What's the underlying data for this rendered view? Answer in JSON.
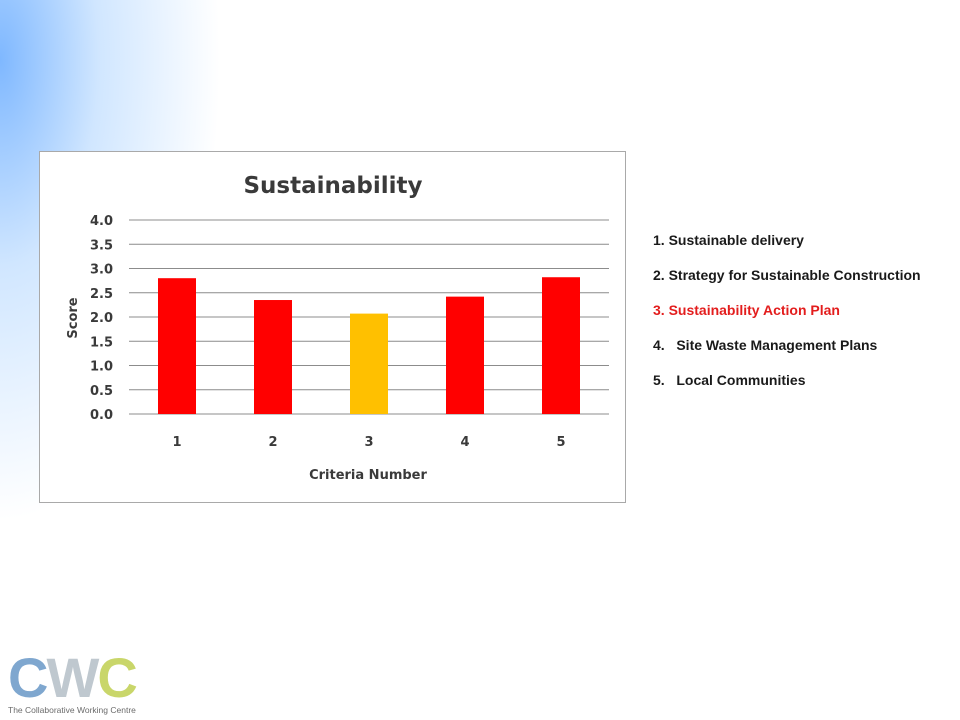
{
  "chart_data": {
    "type": "bar",
    "title": "Sustainability",
    "xlabel": "Criteria Number",
    "ylabel": "Score",
    "categories": [
      "1",
      "2",
      "3",
      "4",
      "5"
    ],
    "values": [
      2.8,
      2.35,
      2.07,
      2.42,
      2.82
    ],
    "bar_colors": [
      "#ff0000",
      "#ff0000",
      "#ffc000",
      "#ff0000",
      "#ff0000"
    ],
    "ylim": [
      0,
      4
    ],
    "yticks": [
      "0.0",
      "0.5",
      "1.0",
      "1.5",
      "2.0",
      "2.5",
      "3.0",
      "3.5",
      "4.0"
    ],
    "grid": true
  },
  "legend": {
    "items": [
      {
        "label": "1. Sustainable delivery",
        "highlight": false
      },
      {
        "label": "2. Strategy for Sustainable Construction",
        "highlight": false
      },
      {
        "label": "3. Sustainability Action Plan",
        "highlight": true
      },
      {
        "label": "4.   Site Waste Management Plans",
        "highlight": false
      },
      {
        "label": "5.   Local Communities",
        "highlight": false
      }
    ],
    "highlight_color": "#e31d1d"
  },
  "logo": {
    "letter_1": "C",
    "letter_2": "W",
    "letter_3": "C",
    "tagline": "The Collaborative Working Centre"
  }
}
